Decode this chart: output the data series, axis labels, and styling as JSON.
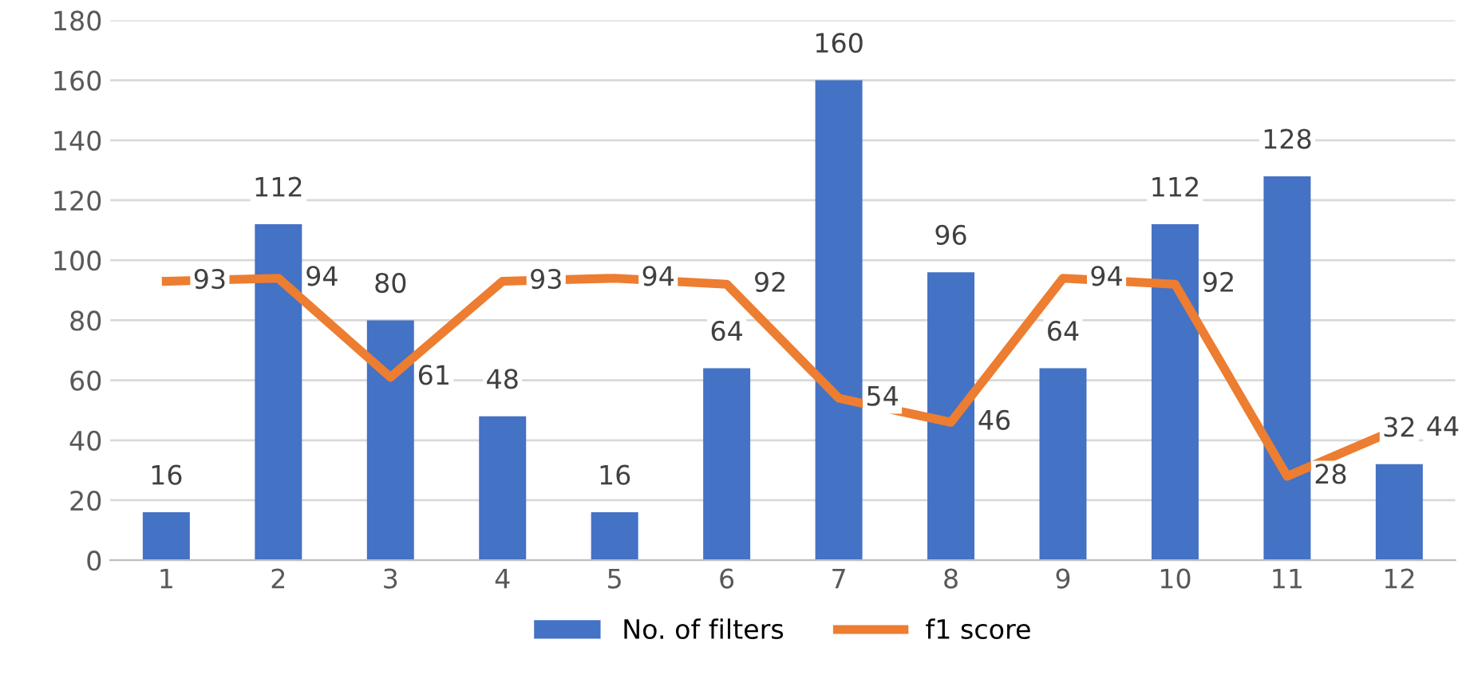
{
  "chart_data": {
    "type": "bar",
    "categories": [
      "1",
      "2",
      "3",
      "4",
      "5",
      "6",
      "7",
      "8",
      "9",
      "10",
      "11",
      "12"
    ],
    "series": [
      {
        "name": "No. of filters",
        "color": "#4472c4",
        "values": [
          16,
          112,
          80,
          48,
          16,
          64,
          160,
          96,
          64,
          112,
          128,
          32
        ]
      },
      {
        "name": "f1 score",
        "type": "line",
        "color": "#ed7d31",
        "values": [
          93,
          94,
          61,
          93,
          94,
          92,
          54,
          46,
          94,
          92,
          28,
          44
        ]
      }
    ],
    "ylim": [
      0,
      180
    ],
    "yticks": [
      0,
      20,
      40,
      60,
      80,
      100,
      120,
      140,
      160,
      180
    ],
    "grid": "y",
    "legend": "bottom",
    "data_labels": true,
    "marker": "none",
    "line_style": "solid"
  }
}
